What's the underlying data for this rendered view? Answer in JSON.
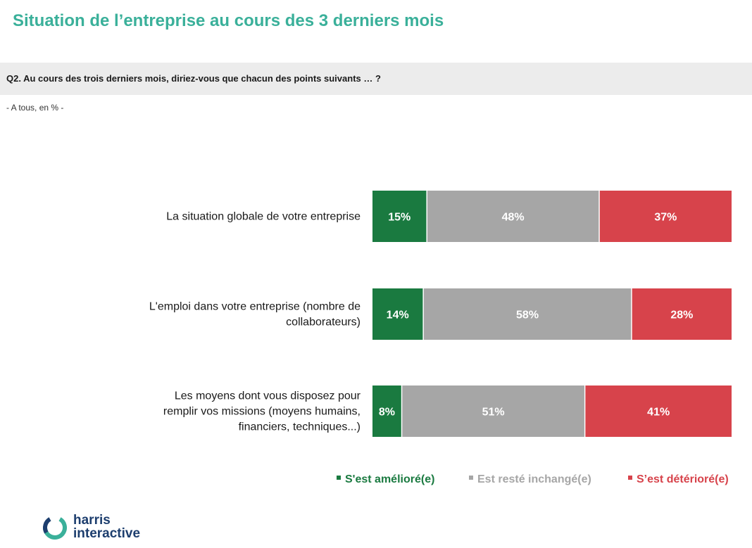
{
  "header": {
    "title": "Situation de l’entreprise au cours des 3 derniers mois",
    "question": "Q2. Au cours des trois derniers mois, diriez-vous que chacun des points suivants … ?",
    "base": "- A tous, en % -"
  },
  "colors": {
    "title": "#3ab09a",
    "improved": "#1a7a40",
    "unchanged": "#a6a6a6",
    "deteriorated": "#d7434b"
  },
  "chart_data": {
    "type": "bar",
    "orientation": "horizontal-stacked-100",
    "categories": [
      [
        "La situation globale de votre entreprise"
      ],
      [
        "L'emploi dans votre entreprise (nombre de",
        "collaborateurs)"
      ],
      [
        "Les moyens dont vous disposez pour",
        "remplir vos missions (moyens humains,",
        "financiers, techniques...)"
      ]
    ],
    "series": [
      {
        "name": "S'est amélioré(e)",
        "values": [
          15,
          14,
          8
        ],
        "labels": [
          "15%",
          "14%",
          "8%"
        ],
        "color": "#1a7a40"
      },
      {
        "name": "Est resté inchangé(e)",
        "values": [
          48,
          58,
          51
        ],
        "labels": [
          "48%",
          "58%",
          "51%"
        ],
        "color": "#a6a6a6"
      },
      {
        "name": "S’est détérioré(e)",
        "values": [
          37,
          28,
          41
        ],
        "labels": [
          "37%",
          "28%",
          "41%"
        ],
        "color": "#d7434b"
      }
    ],
    "xlim": [
      0,
      100
    ],
    "grid": false,
    "legend": "bottom-right"
  },
  "logo": {
    "line1": "harris",
    "line2": "interactive"
  }
}
